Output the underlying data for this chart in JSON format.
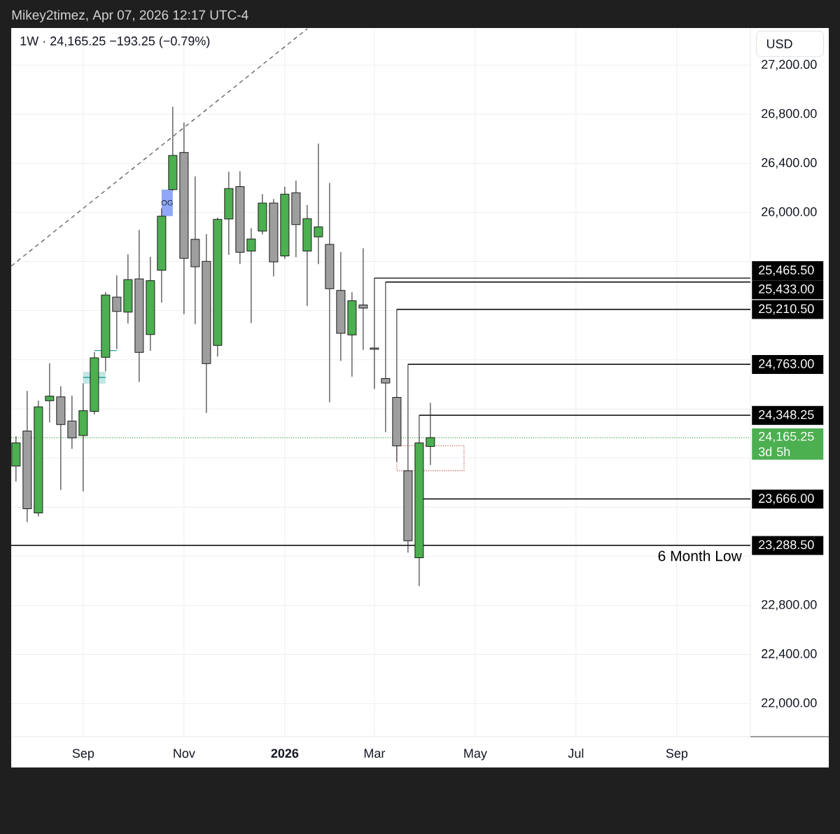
{
  "chart_data": {
    "type": "candlestick",
    "title": "1W · 24,165.25 −193.25 (−0.79%)",
    "ylabel": "USD",
    "annotations": [
      "Mikey2timez, Apr 07, 2026 12:17 UTC-4"
    ],
    "x": [
      "2025-07-21",
      "2025-07-28",
      "2025-08-04",
      "2025-08-11",
      "2025-08-18",
      "2025-08-25",
      "2025-09-01",
      "2025-09-08",
      "2025-09-15",
      "2025-09-22",
      "2025-09-29",
      "2025-10-06",
      "2025-10-13",
      "2025-10-20",
      "2025-10-27",
      "2025-11-03",
      "2025-11-10",
      "2025-11-17",
      "2025-11-24",
      "2025-12-01",
      "2025-12-08",
      "2025-12-15",
      "2025-12-22",
      "2025-12-29",
      "2026-01-05",
      "2026-01-12",
      "2026-01-19",
      "2026-01-26",
      "2026-02-02",
      "2026-02-09",
      "2026-02-16",
      "2026-02-23",
      "2026-03-02",
      "2026-03-09",
      "2026-03-16",
      "2026-03-23",
      "2026-03-30",
      "2026-04-06"
    ],
    "ohlc": [
      [
        23934,
        24177,
        23811,
        24122
      ],
      [
        24219,
        24546,
        23480,
        23586
      ],
      [
        23552,
        24468,
        23526,
        24417
      ],
      [
        24467,
        24771,
        24293,
        24504
      ],
      [
        24497,
        24584,
        23742,
        24273
      ],
      [
        24301,
        24507,
        24077,
        24164
      ],
      [
        24182,
        24607,
        23731,
        24385
      ],
      [
        24379,
        24863,
        24356,
        24816
      ],
      [
        24820,
        25350,
        24708,
        25328
      ],
      [
        25310,
        25487,
        24889,
        25193
      ],
      [
        25188,
        25658,
        25097,
        25453
      ],
      [
        25459,
        25858,
        24622,
        24860
      ],
      [
        25006,
        25639,
        24875,
        25445
      ],
      [
        25529,
        26032,
        25268,
        25970
      ],
      [
        26186,
        26861,
        26179,
        26464
      ],
      [
        26488,
        26732,
        25174,
        25626
      ],
      [
        25781,
        26293,
        25092,
        25557
      ],
      [
        25601,
        25824,
        24370,
        24769
      ],
      [
        24917,
        25958,
        24828,
        25943
      ],
      [
        25947,
        26331,
        25657,
        26194
      ],
      [
        26210,
        26336,
        25582,
        25675
      ],
      [
        25685,
        25871,
        25101,
        25784
      ],
      [
        25848,
        26149,
        25824,
        26076
      ],
      [
        26076,
        26109,
        25482,
        25597
      ],
      [
        25645,
        26209,
        25624,
        26149
      ],
      [
        26160,
        26259,
        25637,
        25901
      ],
      [
        25685,
        26061,
        25240,
        25949
      ],
      [
        25801,
        26561,
        25582,
        25882
      ],
      [
        25740,
        26240,
        24456,
        25379
      ],
      [
        25365,
        25677,
        24793,
        25016
      ],
      [
        25003,
        25351,
        24665,
        25281
      ],
      [
        25246,
        25708,
        24882,
        25221
      ],
      [
        24895,
        25465.5,
        24565,
        24885
      ],
      [
        24647,
        25433,
        24213,
        24611
      ],
      [
        24493,
        25210.5,
        23971,
        24099
      ],
      [
        23896,
        24763,
        23231,
        23326
      ],
      [
        23187,
        24348.25,
        22959,
        24122
      ],
      [
        24094,
        24449,
        23944,
        24165.25
      ]
    ],
    "colors": [
      "#4caf50",
      "#9e9e9e",
      "#4caf50",
      "#4caf50",
      "#9e9e9e",
      "#9e9e9e",
      "#4caf50",
      "#4caf50",
      "#4caf50",
      "#9e9e9e",
      "#4caf50",
      "#9e9e9e",
      "#4caf50",
      "#4caf50",
      "#4caf50",
      "#9e9e9e",
      "#9e9e9e",
      "#9e9e9e",
      "#4caf50",
      "#4caf50",
      "#9e9e9e",
      "#4caf50",
      "#4caf50",
      "#9e9e9e",
      "#4caf50",
      "#9e9e9e",
      "#4caf50",
      "#4caf50",
      "#9e9e9e",
      "#9e9e9e",
      "#4caf50",
      "#9e9e9e",
      "#9e9e9e",
      "#9e9e9e",
      "#9e9e9e",
      "#9e9e9e",
      "#4caf50",
      "#4caf50"
    ],
    "xlim": [
      "2025-07-18",
      "2026-10-23"
    ],
    "ylim": [
      21730,
      27502
    ],
    "xticks": [
      {
        "value": "2025-09-01",
        "label": "Sep"
      },
      {
        "value": "2025-11-03",
        "label": "Nov"
      },
      {
        "value": "2026-01-05",
        "label": "2026"
      },
      {
        "value": "2026-03-02",
        "label": "Mar"
      },
      {
        "value": "2026-05-04",
        "label": "May"
      },
      {
        "value": "2026-07-06",
        "label": "Jul"
      },
      {
        "value": "2026-09-07",
        "label": "Sep"
      }
    ],
    "yticks": [
      {
        "value": 22000,
        "label": "22,000.00"
      },
      {
        "value": 22400,
        "label": "22,400.00"
      },
      {
        "value": 22800,
        "label": "22,800.00"
      },
      {
        "value": 23200,
        "label": null
      },
      {
        "value": 23600,
        "label": null
      },
      {
        "value": 24000,
        "label": null
      },
      {
        "value": 24400,
        "label": null
      },
      {
        "value": 24800,
        "label": null
      },
      {
        "value": 25200,
        "label": null
      },
      {
        "value": 25600,
        "label": null
      },
      {
        "value": 26000,
        "label": "26,000.00"
      },
      {
        "value": 26400,
        "label": "26,400.00"
      },
      {
        "value": 26800,
        "label": "26,800.00"
      },
      {
        "value": 27200,
        "label": "27,200.00"
      }
    ],
    "grid": true,
    "series": [
      {
        "type": "line",
        "x": [
          "2025-07-18",
          "2026-01-19"
        ],
        "values": [
          25563,
          27496
        ],
        "color": "#666666",
        "line_style": "dashed"
      },
      {
        "type": "line",
        "x": [
          "2025-09-01",
          "2025-09-15"
        ],
        "values": [
          24656,
          24656
        ],
        "lower": [
          24605,
          24605
        ],
        "upper": [
          24702,
          24702
        ],
        "color": "#26a69a"
      },
      {
        "type": "line",
        "x": [
          "2025-09-08",
          "2025-09-22"
        ],
        "values": [
          24875,
          24875
        ],
        "color": "#26a69a"
      },
      {
        "type": "bar",
        "name": "OG",
        "x": [
          "2025-10-23T12:00"
        ],
        "base": [
          25970
        ],
        "values": [
          216
        ],
        "color": "#8fa8f8"
      },
      {
        "type": "line",
        "x": [
          "2026-04-27",
          "2026-03-16",
          "2026-03-16"
        ],
        "values": [
          24099,
          24099,
          23896
        ],
        "color": "#d46a6a",
        "line_style": "dotted"
      },
      {
        "type": "line",
        "x": [
          "2026-03-16",
          "2026-04-27",
          "2026-04-27"
        ],
        "values": [
          23896,
          23896,
          24099
        ],
        "color": "#d46a6a",
        "line_style": "dotted"
      },
      {
        "type": "line",
        "x": [
          "2026-03-02",
          "2026-10-23"
        ],
        "values": [
          25465.5,
          25465.5
        ],
        "value_labels": [
          null,
          "25,465.50"
        ],
        "color": "#000000"
      },
      {
        "type": "line",
        "x": [
          "2026-03-09",
          "2026-10-23"
        ],
        "values": [
          25433,
          25433
        ],
        "value_labels": [
          null,
          "25,433.00"
        ],
        "color": "#000000"
      },
      {
        "type": "line",
        "x": [
          "2026-03-16",
          "2026-10-23"
        ],
        "values": [
          25210.5,
          25210.5
        ],
        "value_labels": [
          null,
          "25,210.50"
        ],
        "color": "#000000"
      },
      {
        "type": "line",
        "x": [
          "2026-03-23",
          "2026-10-23"
        ],
        "values": [
          24763,
          24763
        ],
        "value_labels": [
          null,
          "24,763.00"
        ],
        "color": "#000000"
      },
      {
        "type": "line",
        "x": [
          "2026-03-30",
          "2026-10-23"
        ],
        "values": [
          24348.25,
          24348.25
        ],
        "value_labels": [
          null,
          "24,348.25"
        ],
        "color": "#000000"
      },
      {
        "type": "line",
        "x": [
          "2026-04-01",
          "2026-10-23"
        ],
        "values": [
          23666,
          23666
        ],
        "value_labels": [
          null,
          "23,666.00"
        ],
        "color": "#000000"
      },
      {
        "type": "line",
        "name": "6 Month Low",
        "x": [
          "2025-07-18",
          "2026-10-23"
        ],
        "values": [
          23288.5,
          23288.5
        ],
        "value_labels": [
          null,
          "23,288.50"
        ],
        "color": "#000000"
      }
    ],
    "ref_lines": [
      {
        "axis": "y",
        "value": 24165.25,
        "label": "24,165.25 3d 5h",
        "color": "#4caf50",
        "line_style": "dotted"
      }
    ]
  }
}
